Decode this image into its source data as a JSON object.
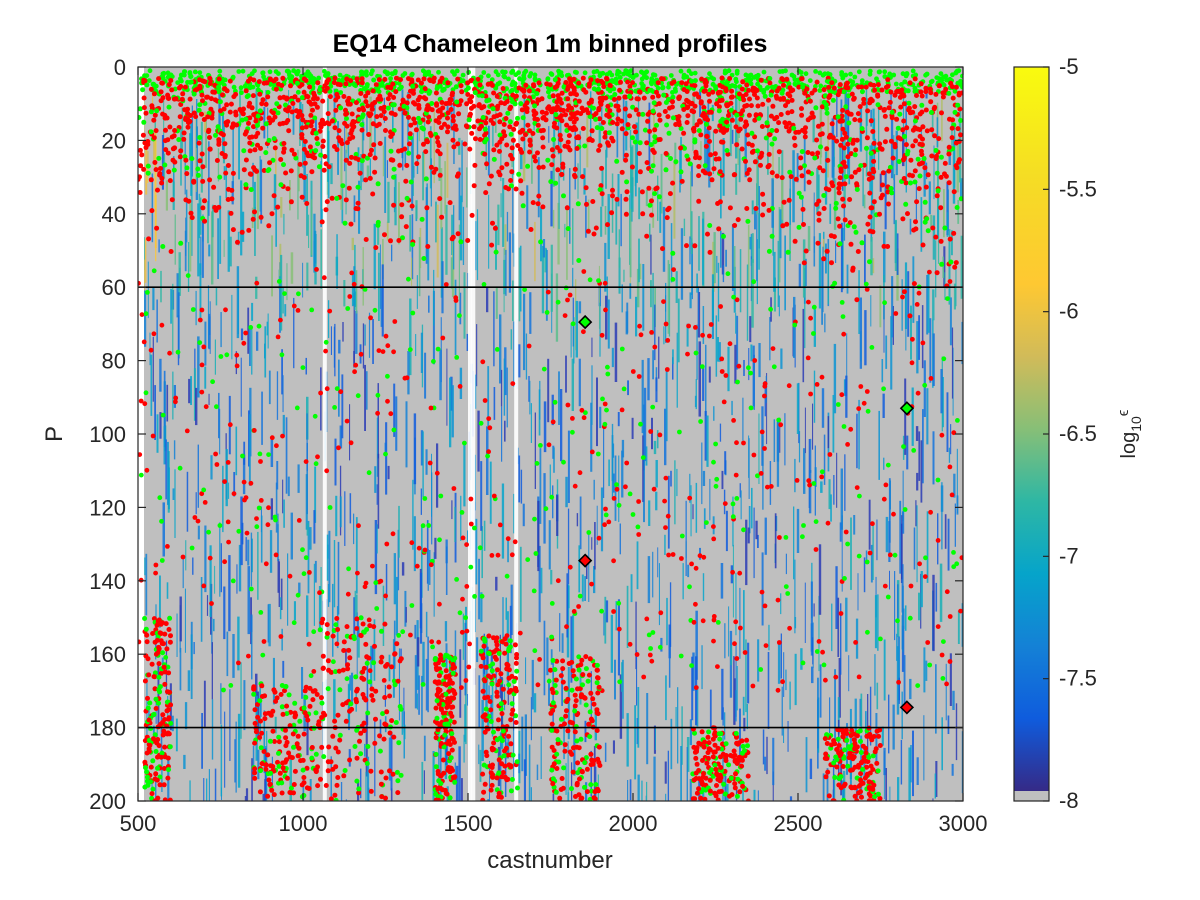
{
  "chart_data": {
    "type": "heatmap",
    "title": "EQ14 Chameleon 1m binned profiles",
    "xlabel": "castnumber",
    "ylabel": "P",
    "xlim": [
      500,
      3000
    ],
    "ylim": [
      0,
      200
    ],
    "y_reversed": true,
    "x_ticks": [
      "500",
      "1000",
      "1500",
      "2000",
      "2500",
      "3000"
    ],
    "y_ticks": [
      "0",
      "20",
      "40",
      "60",
      "80",
      "100",
      "120",
      "140",
      "160",
      "180",
      "200"
    ],
    "grid": false,
    "colorbar": {
      "label_base": "log",
      "label_sub": "10",
      "label_sup": "ϵ",
      "range": [
        -8,
        -5
      ],
      "ticks": [
        "-5",
        "-5.5",
        "-6",
        "-6.5",
        "-7",
        "-7.5",
        "-8"
      ],
      "colormap": "parula",
      "nan_color": "#bfbfbf"
    },
    "background_color": "#bfbfbf",
    "reference_lines": [
      {
        "y": 60,
        "color": "#000000"
      },
      {
        "y": 180,
        "color": "#000000"
      }
    ],
    "marker_series": [
      {
        "color": "#00ff00",
        "style": "dot"
      },
      {
        "color": "#ff0000",
        "style": "dot"
      }
    ],
    "diamond_markers": [
      {
        "x": 1855,
        "y": 69.5,
        "fill": "#00ff00"
      },
      {
        "x": 1855,
        "y": 134.5,
        "fill": "#ff0000"
      },
      {
        "x": 2830,
        "y": 93,
        "fill": "#00ff00"
      },
      {
        "x": 2830,
        "y": 174.5,
        "fill": "#ff0000"
      }
    ],
    "data_gaps_x": [
      1060,
      1500,
      1510,
      1640
    ]
  }
}
